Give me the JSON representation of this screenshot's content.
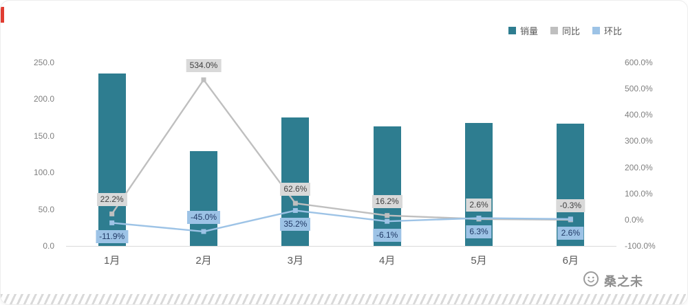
{
  "chart_data": {
    "type": "bar",
    "subtype": "combo-bar-line",
    "title": "",
    "categories": [
      "1月",
      "2月",
      "3月",
      "4月",
      "5月",
      "6月"
    ],
    "legend": [
      "销量",
      "同比",
      "环比"
    ],
    "legend_position": "top-right",
    "grid": false,
    "left_axis": {
      "ticks": [
        "250.0",
        "200.0",
        "150.0",
        "100.0",
        "50.0",
        "0.0"
      ],
      "min": 0,
      "max": 250
    },
    "right_axis": {
      "ticks": [
        "600.0%",
        "500.0%",
        "400.0%",
        "300.0%",
        "200.0%",
        "100.0%",
        "0.0%",
        "-100.0%"
      ],
      "min": -100,
      "max": 600
    },
    "series": [
      {
        "name": "销量",
        "type": "bar",
        "axis": "left",
        "values": [
          235,
          129,
          175,
          163,
          168,
          167
        ]
      },
      {
        "name": "同比",
        "type": "line",
        "axis": "right",
        "values": [
          22.2,
          534.0,
          62.6,
          16.2,
          2.6,
          -0.3
        ],
        "labels": [
          "22.2%",
          "534.0%",
          "62.6%",
          "16.2%",
          "2.6%",
          "-0.3%"
        ],
        "label_side": [
          "above",
          "above",
          "above",
          "above",
          "above",
          "above"
        ]
      },
      {
        "name": "环比",
        "type": "line",
        "axis": "right",
        "values": [
          -11.9,
          -45.0,
          35.2,
          -6.1,
          6.3,
          2.6
        ],
        "labels": [
          "-11.9%",
          "-45.0%",
          "35.2%",
          "-6.1%",
          "6.3%",
          "2.6%"
        ],
        "label_side": [
          "below",
          "above",
          "below",
          "below",
          "below",
          "below"
        ]
      }
    ],
    "colors": {
      "bar": "#2E7D90",
      "line_yoy": "#BFBFBF",
      "line_mom": "#9DC3E6",
      "label_bg_yoy": "#D9D9D9",
      "label_text_yoy": "#3F3F3F",
      "label_bg_mom": "#9DC3E6",
      "label_text_mom": "#1F3864",
      "axis_text": "#7F7F7F",
      "category_text": "#595959",
      "gridline": "#D9D9D9"
    }
  },
  "watermark": {
    "text": "桑之未"
  },
  "accent": {
    "red_mark_color": "#E03C31"
  }
}
